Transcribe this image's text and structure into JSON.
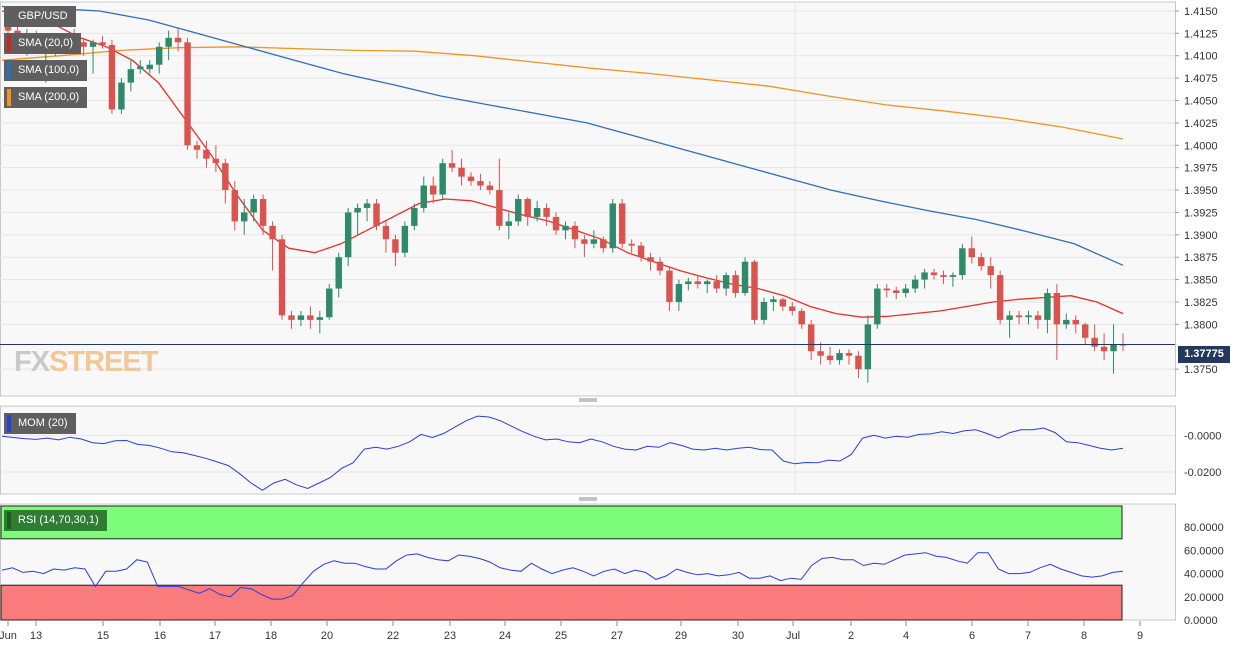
{
  "legends": {
    "symbol": "GBP/USD",
    "sma20": "SMA (20,0)",
    "sma100": "SMA (100,0)",
    "sma200": "SMA (200,0)",
    "mom": "MOM (20)",
    "rsi": "RSI (14,70,30,1)"
  },
  "colors": {
    "bull": "#2f8a6a",
    "bear": "#d9534f",
    "sma20": "#e8302a",
    "sma100": "#2f6fb5",
    "sma200": "#f0961e",
    "indicator": "#2a3ed8",
    "rsi_overbought": "#7dfb7b",
    "rsi_oversold": "#fa7b7b"
  },
  "logo": {
    "part1": "FX",
    "part2": "STREET"
  },
  "current_price": "1.37775",
  "chart_data": [
    {
      "type": "candlestick",
      "title": "GBP/USD",
      "x_labels": [
        "Jun",
        "13",
        "15",
        "16",
        "17",
        "18",
        "20",
        "22",
        "23",
        "24",
        "25",
        "27",
        "29",
        "30",
        "Jul",
        "2",
        "4",
        "6",
        "7",
        "8",
        "9"
      ],
      "y_ticks": [
        "1.4150",
        "1.4125",
        "1.4100",
        "1.4075",
        "1.4050",
        "1.4025",
        "1.4000",
        "1.3975",
        "1.3950",
        "1.3925",
        "1.3900",
        "1.3875",
        "1.3850",
        "1.3825",
        "1.3800",
        "1.3750"
      ],
      "ylim": [
        1.372,
        1.416
      ],
      "grid": true,
      "last_price": 1.37775,
      "candles_ohlc": [
        [
          1.414,
          1.4148,
          1.412,
          1.4128
        ],
        [
          1.4128,
          1.4142,
          1.411,
          1.4115
        ],
        [
          1.4115,
          1.413,
          1.41,
          1.4122
        ],
        [
          1.4122,
          1.4128,
          1.4105,
          1.411
        ],
        [
          1.411,
          1.4125,
          1.407,
          1.4112
        ],
        [
          1.4112,
          1.412,
          1.41,
          1.4115
        ],
        [
          1.4115,
          1.4122,
          1.4108,
          1.4118
        ],
        [
          1.4118,
          1.413,
          1.411,
          1.4115
        ],
        [
          1.4115,
          1.412,
          1.41,
          1.411
        ],
        [
          1.411,
          1.4118,
          1.408,
          1.4115
        ],
        [
          1.4115,
          1.4122,
          1.4108,
          1.4112
        ],
        [
          1.4112,
          1.4118,
          1.4035,
          1.404
        ],
        [
          1.404,
          1.4075,
          1.4035,
          1.407
        ],
        [
          1.407,
          1.4095,
          1.406,
          1.4085
        ],
        [
          1.4085,
          1.4095,
          1.408,
          1.4088
        ],
        [
          1.4085,
          1.4095,
          1.408,
          1.409
        ],
        [
          1.409,
          1.4115,
          1.408,
          1.411
        ],
        [
          1.411,
          1.4128,
          1.4095,
          1.412
        ],
        [
          1.412,
          1.413,
          1.4105,
          1.4115
        ],
        [
          1.4115,
          1.412,
          1.3995,
          1.4
        ],
        [
          1.4,
          1.4005,
          1.3985,
          1.3995
        ],
        [
          1.3995,
          1.4005,
          1.3975,
          1.3985
        ],
        [
          1.3985,
          1.4,
          1.397,
          1.398
        ],
        [
          1.398,
          1.3985,
          1.3935,
          1.395
        ],
        [
          1.395,
          1.396,
          1.3905,
          1.3915
        ],
        [
          1.3915,
          1.394,
          1.39,
          1.3925
        ],
        [
          1.3925,
          1.3945,
          1.3915,
          1.394
        ],
        [
          1.394,
          1.3945,
          1.39,
          1.391
        ],
        [
          1.391,
          1.3915,
          1.386,
          1.3895
        ],
        [
          1.3895,
          1.39,
          1.3805,
          1.381
        ],
        [
          1.381,
          1.3815,
          1.3795,
          1.3805
        ],
        [
          1.3805,
          1.3815,
          1.3798,
          1.381
        ],
        [
          1.381,
          1.382,
          1.3795,
          1.3805
        ],
        [
          1.3805,
          1.3815,
          1.379,
          1.3808
        ],
        [
          1.3808,
          1.3845,
          1.3805,
          1.384
        ],
        [
          1.384,
          1.388,
          1.383,
          1.3875
        ],
        [
          1.3875,
          1.393,
          1.3865,
          1.3925
        ],
        [
          1.3925,
          1.3935,
          1.39,
          1.393
        ],
        [
          1.393,
          1.394,
          1.3915,
          1.3935
        ],
        [
          1.3935,
          1.394,
          1.3905,
          1.391
        ],
        [
          1.391,
          1.3915,
          1.388,
          1.3895
        ],
        [
          1.3895,
          1.39,
          1.3865,
          1.388
        ],
        [
          1.388,
          1.3915,
          1.3875,
          1.391
        ],
        [
          1.391,
          1.3935,
          1.3905,
          1.393
        ],
        [
          1.393,
          1.3965,
          1.3925,
          1.3955
        ],
        [
          1.3955,
          1.3965,
          1.3935,
          1.3945
        ],
        [
          1.3945,
          1.3985,
          1.394,
          1.398
        ],
        [
          1.398,
          1.3995,
          1.397,
          1.3975
        ],
        [
          1.3975,
          1.3985,
          1.3955,
          1.3965
        ],
        [
          1.3965,
          1.397,
          1.3955,
          1.396
        ],
        [
          1.396,
          1.3968,
          1.395,
          1.3955
        ],
        [
          1.3955,
          1.396,
          1.3945,
          1.395
        ],
        [
          1.395,
          1.3985,
          1.3905,
          1.391
        ],
        [
          1.391,
          1.3925,
          1.3895,
          1.3915
        ],
        [
          1.3915,
          1.3945,
          1.391,
          1.394
        ],
        [
          1.394,
          1.3942,
          1.391,
          1.392
        ],
        [
          1.392,
          1.3938,
          1.3915,
          1.393
        ],
        [
          1.393,
          1.3935,
          1.391,
          1.392
        ],
        [
          1.392,
          1.3925,
          1.39,
          1.3905
        ],
        [
          1.3905,
          1.3915,
          1.3895,
          1.391
        ],
        [
          1.391,
          1.3915,
          1.3885,
          1.3895
        ],
        [
          1.3895,
          1.39,
          1.3875,
          1.389
        ],
        [
          1.389,
          1.3905,
          1.3885,
          1.3895
        ],
        [
          1.3895,
          1.3898,
          1.388,
          1.3885
        ],
        [
          1.3885,
          1.394,
          1.388,
          1.3935
        ],
        [
          1.3935,
          1.394,
          1.3885,
          1.389
        ],
        [
          1.389,
          1.3895,
          1.388,
          1.3888
        ],
        [
          1.3888,
          1.3892,
          1.387,
          1.3875
        ],
        [
          1.3875,
          1.388,
          1.386,
          1.387
        ],
        [
          1.387,
          1.3875,
          1.3855,
          1.386
        ],
        [
          1.386,
          1.3865,
          1.3815,
          1.3825
        ],
        [
          1.3825,
          1.385,
          1.3815,
          1.3845
        ],
        [
          1.3845,
          1.3852,
          1.3838,
          1.3848
        ],
        [
          1.3848,
          1.3855,
          1.384,
          1.3845
        ],
        [
          1.3845,
          1.385,
          1.3835,
          1.3848
        ],
        [
          1.3848,
          1.3855,
          1.3835,
          1.384
        ],
        [
          1.384,
          1.3858,
          1.3832,
          1.3855
        ],
        [
          1.3855,
          1.386,
          1.383,
          1.3835
        ],
        [
          1.3835,
          1.3875,
          1.3832,
          1.387
        ],
        [
          1.387,
          1.3872,
          1.38,
          1.3805
        ],
        [
          1.3805,
          1.383,
          1.38,
          1.3825
        ],
        [
          1.3825,
          1.3832,
          1.3815,
          1.3828
        ],
        [
          1.3828,
          1.383,
          1.3815,
          1.382
        ],
        [
          1.382,
          1.3825,
          1.381,
          1.3815
        ],
        [
          1.3815,
          1.3818,
          1.3795,
          1.38
        ],
        [
          1.38,
          1.3805,
          1.376,
          1.377
        ],
        [
          1.377,
          1.378,
          1.3755,
          1.3765
        ],
        [
          1.3765,
          1.3775,
          1.3755,
          1.376
        ],
        [
          1.376,
          1.3772,
          1.3755,
          1.3768
        ],
        [
          1.3768,
          1.3772,
          1.3755,
          1.3765
        ],
        [
          1.3765,
          1.377,
          1.374,
          1.375
        ],
        [
          1.375,
          1.381,
          1.3735,
          1.38
        ],
        [
          1.38,
          1.3845,
          1.3795,
          1.384
        ],
        [
          1.384,
          1.3845,
          1.383,
          1.3838
        ],
        [
          1.3838,
          1.3842,
          1.3828,
          1.3835
        ],
        [
          1.3835,
          1.3845,
          1.383,
          1.384
        ],
        [
          1.384,
          1.3855,
          1.3835,
          1.385
        ],
        [
          1.385,
          1.3862,
          1.384,
          1.3858
        ],
        [
          1.3858,
          1.3862,
          1.385,
          1.3855
        ],
        [
          1.3855,
          1.386,
          1.3845,
          1.3853
        ],
        [
          1.3853,
          1.3858,
          1.3842,
          1.3855
        ],
        [
          1.3855,
          1.389,
          1.385,
          1.3885
        ],
        [
          1.3885,
          1.3898,
          1.3868,
          1.3875
        ],
        [
          1.3875,
          1.388,
          1.386,
          1.3865
        ],
        [
          1.3865,
          1.3875,
          1.384,
          1.3855
        ],
        [
          1.3855,
          1.386,
          1.38,
          1.3805
        ],
        [
          1.3805,
          1.3815,
          1.3785,
          1.381
        ],
        [
          1.381,
          1.3815,
          1.38,
          1.3808
        ],
        [
          1.3808,
          1.3815,
          1.38,
          1.381
        ],
        [
          1.381,
          1.3815,
          1.3795,
          1.3805
        ],
        [
          1.3805,
          1.384,
          1.379,
          1.3835
        ],
        [
          1.3835,
          1.3845,
          1.376,
          1.38
        ],
        [
          1.38,
          1.3812,
          1.3795,
          1.3805
        ],
        [
          1.3805,
          1.381,
          1.379,
          1.38
        ],
        [
          1.38,
          1.3802,
          1.3778,
          1.3785
        ],
        [
          1.3785,
          1.38,
          1.377,
          1.3775
        ],
        [
          1.3775,
          1.379,
          1.376,
          1.377
        ],
        [
          1.377,
          1.38,
          1.3745,
          1.3778
        ],
        [
          1.3778,
          1.379,
          1.377,
          1.37775
        ]
      ],
      "series": [
        {
          "name": "SMA (20,0)",
          "values": [
            1.415,
            1.4145,
            1.4135,
            1.412,
            1.411,
            1.4095,
            1.407,
            1.403,
            1.399,
            1.3945,
            1.3905,
            1.3885,
            1.388,
            1.389,
            1.3905,
            1.392,
            1.3935,
            1.394,
            1.3938,
            1.393,
            1.3922,
            1.3915,
            1.3905,
            1.3895,
            1.388,
            1.387,
            1.386,
            1.3852,
            1.3845,
            1.384,
            1.3832,
            1.382,
            1.3812,
            1.3808,
            1.3809,
            1.3812,
            1.3815,
            1.382,
            1.3825,
            1.3828,
            1.383,
            1.3832,
            1.3825,
            1.3812
          ]
        },
        {
          "name": "SMA (100,0)",
          "values": [
            1.4155,
            1.4153,
            1.415,
            1.414,
            1.4125,
            1.411,
            1.4095,
            1.408,
            1.4068,
            1.4055,
            1.4045,
            1.4035,
            1.4025,
            1.401,
            1.3995,
            1.398,
            1.3965,
            1.395,
            1.3938,
            1.3927,
            1.3917,
            1.3904,
            1.389,
            1.3866
          ]
        },
        {
          "name": "SMA (200,0)",
          "values": [
            1.4095,
            1.41,
            1.4106,
            1.4109,
            1.411,
            1.4108,
            1.4106,
            1.4105,
            1.41,
            1.4093,
            1.4086,
            1.408,
            1.4073,
            1.4066,
            1.4055,
            1.4045,
            1.4038,
            1.403,
            1.402,
            1.4007
          ]
        }
      ]
    },
    {
      "type": "line",
      "title": "MOM (20)",
      "y_ticks": [
        "-0.0000",
        "-0.0200"
      ],
      "ylim": [
        -0.032,
        0.016
      ],
      "series": [
        {
          "name": "MOM (20)",
          "values": [
            -0.0005,
            -0.0012,
            -0.0018,
            -0.0022,
            -0.0015,
            -0.0025,
            -0.001,
            -0.002,
            -0.004,
            -0.0045,
            -0.003,
            -0.0028,
            -0.005,
            -0.0055,
            -0.007,
            -0.009,
            -0.0095,
            -0.011,
            -0.0125,
            -0.0145,
            -0.0165,
            -0.021,
            -0.026,
            -0.03,
            -0.026,
            -0.024,
            -0.027,
            -0.029,
            -0.026,
            -0.023,
            -0.018,
            -0.015,
            -0.0075,
            -0.0065,
            -0.0075,
            -0.006,
            -0.0035,
            0.0005,
            -0.0012,
            0.001,
            0.0045,
            0.008,
            0.0105,
            0.01,
            0.008,
            0.005,
            0.002,
            -0.0005,
            -0.0025,
            -0.002,
            -0.0035,
            -0.004,
            -0.002,
            -0.0035,
            -0.006,
            -0.0075,
            -0.008,
            -0.006,
            -0.0065,
            -0.004,
            -0.0055,
            -0.0075,
            -0.008,
            -0.007,
            -0.008,
            -0.007,
            -0.0065,
            -0.0078,
            -0.008,
            -0.014,
            -0.0155,
            -0.0148,
            -0.015,
            -0.0135,
            -0.014,
            -0.0105,
            -0.0015,
            0.0,
            -0.0015,
            -0.0005,
            -0.001,
            0.0005,
            0.0008,
            0.002,
            0.001,
            0.0025,
            0.003,
            0.001,
            -0.0015,
            0.0015,
            0.003,
            0.003,
            0.004,
            0.0015,
            -0.0035,
            -0.004,
            -0.0055,
            -0.007,
            -0.008,
            -0.007
          ]
        }
      ]
    },
    {
      "type": "line",
      "title": "RSI (14,70,30,1)",
      "y_ticks": [
        "80.0000",
        "60.0000",
        "40.0000",
        "20.0000",
        "0.0000"
      ],
      "ylim": [
        0,
        100
      ],
      "overbought": 70,
      "oversold": 30,
      "series": [
        {
          "name": "RSI (14,70,30,1)",
          "values": [
            43,
            45,
            41,
            42,
            40,
            44,
            43,
            45,
            44,
            29,
            42,
            42,
            44,
            52,
            50,
            29,
            29,
            29,
            26,
            23,
            27,
            22,
            20,
            28,
            27,
            22,
            18,
            18,
            21,
            32,
            42,
            48,
            51,
            49,
            49,
            46,
            44,
            44,
            51,
            56,
            57,
            54,
            52,
            51,
            56,
            55,
            53,
            50,
            45,
            43,
            42,
            49,
            44,
            40,
            43,
            45,
            42,
            38,
            42,
            44,
            40,
            43,
            41,
            35,
            38,
            44,
            41,
            39,
            40,
            38,
            39,
            41,
            36,
            36,
            38,
            34,
            36,
            35,
            47,
            53,
            54,
            52,
            52,
            47,
            49,
            48,
            52,
            56,
            57,
            58,
            55,
            54,
            51,
            49,
            58,
            58,
            44,
            40,
            40,
            41,
            45,
            48,
            44,
            41,
            38,
            37,
            38,
            41,
            42
          ]
        }
      ]
    }
  ],
  "x_axis_labels": [
    "Jun",
    "13",
    "15",
    "16",
    "17",
    "18",
    "20",
    "22",
    "23",
    "24",
    "25",
    "27",
    "29",
    "30",
    "Jul",
    "2",
    "4",
    "6",
    "7",
    "8",
    "9"
  ]
}
